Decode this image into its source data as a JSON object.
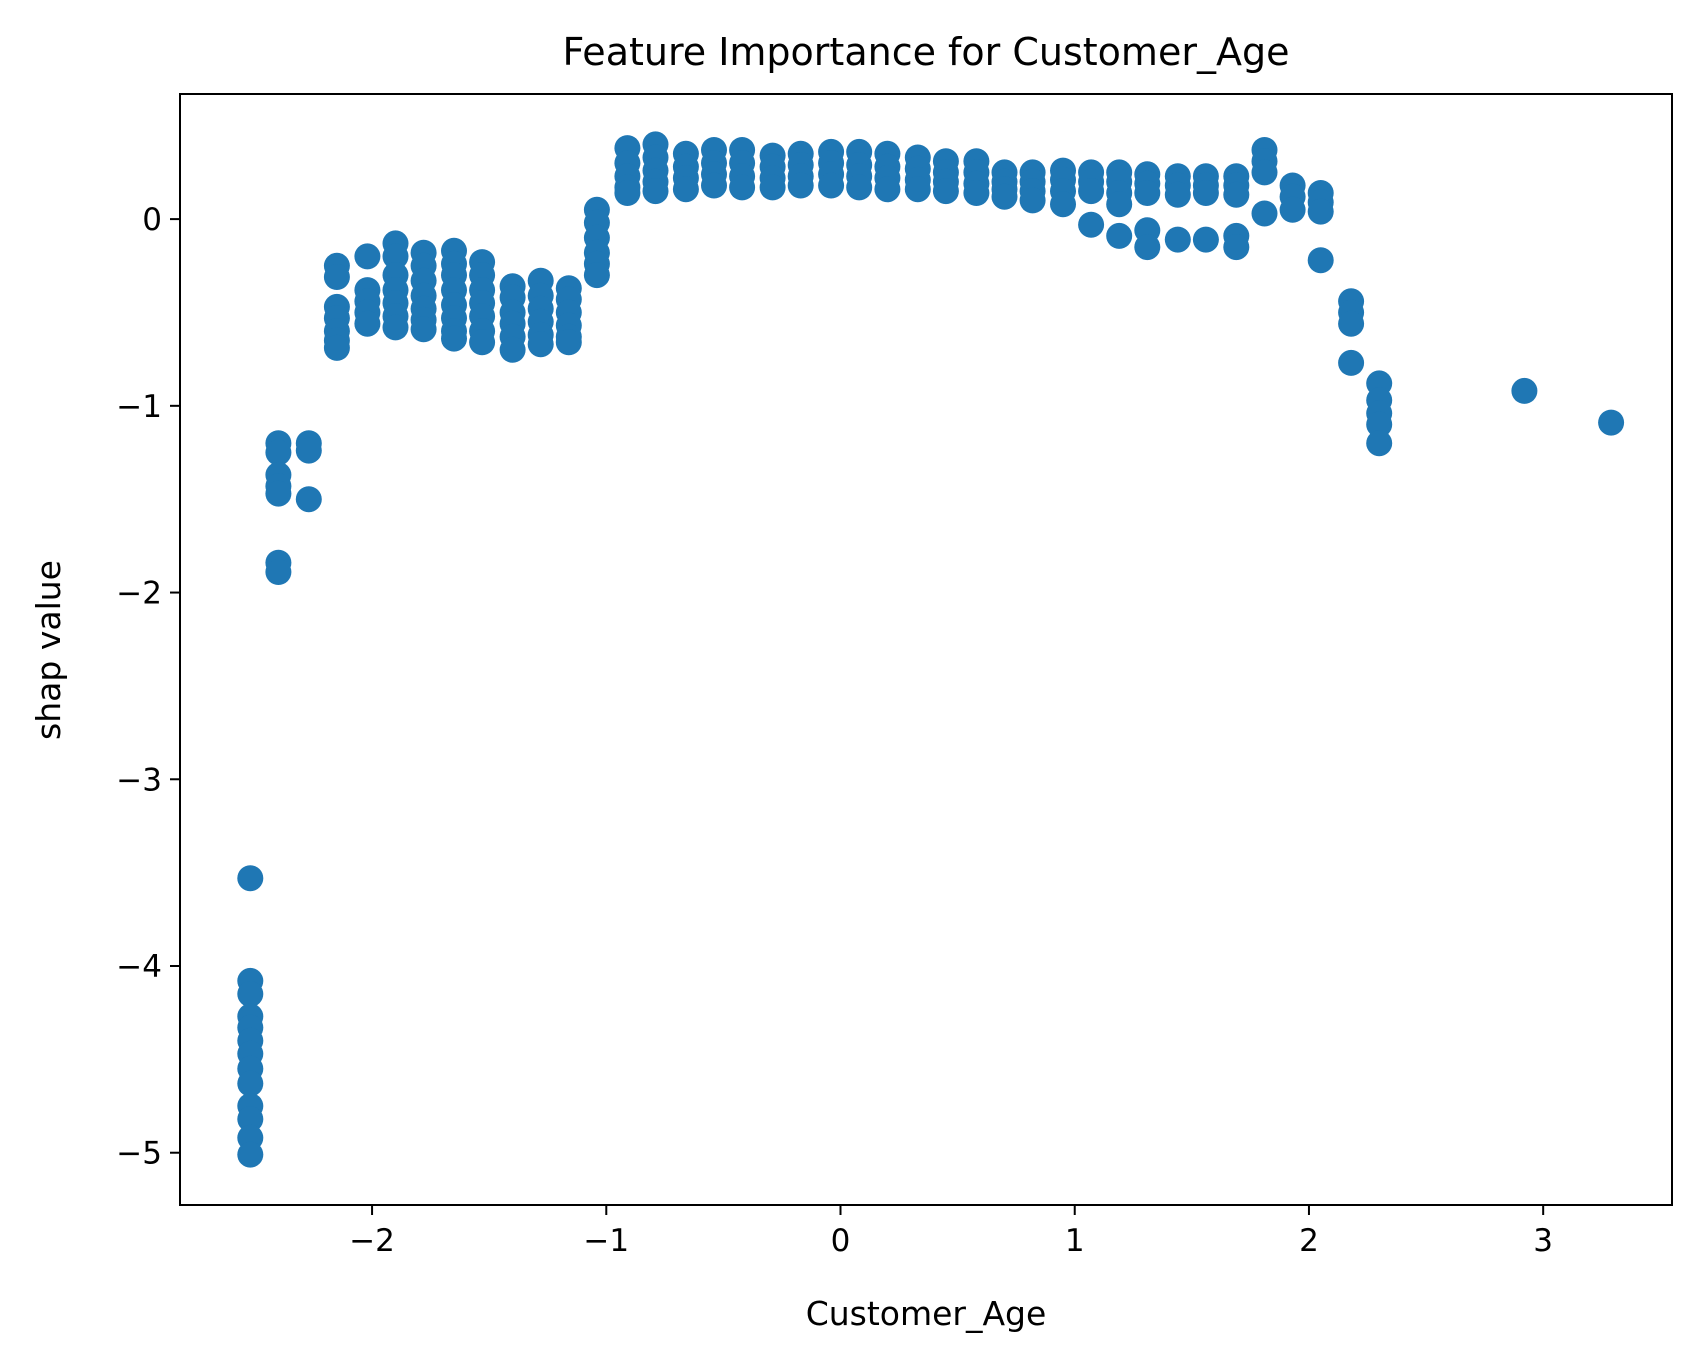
{
  "chart_data": {
    "type": "scatter",
    "title": "Feature Importance for Customer_Age",
    "xlabel": "Customer_Age",
    "ylabel": "shap value",
    "xlim": [
      -2.82,
      3.55
    ],
    "ylim": [
      -5.28,
      0.67
    ],
    "xticks": [
      -2,
      -1,
      0,
      1,
      2,
      3
    ],
    "yticks": [
      -5,
      -4,
      -3,
      -2,
      -1,
      0
    ],
    "xtick_labels": [
      "−2",
      "−1",
      "0",
      "1",
      "2",
      "3"
    ],
    "ytick_labels": [
      "−5",
      "−4",
      "−3",
      "−2",
      "−1",
      "0"
    ],
    "grid": false,
    "legend": false,
    "marker_color": "#1f77b4",
    "series": [
      {
        "points": [
          [
            -2.52,
            -3.53
          ],
          [
            -2.52,
            -4.08
          ],
          [
            -2.52,
            -4.15
          ],
          [
            -2.52,
            -4.27
          ],
          [
            -2.52,
            -4.33
          ],
          [
            -2.52,
            -4.4
          ],
          [
            -2.52,
            -4.47
          ],
          [
            -2.52,
            -4.55
          ],
          [
            -2.52,
            -4.63
          ],
          [
            -2.52,
            -4.75
          ],
          [
            -2.52,
            -4.82
          ],
          [
            -2.52,
            -4.92
          ],
          [
            -2.52,
            -5.01
          ],
          [
            -2.4,
            -1.2
          ],
          [
            -2.4,
            -1.25
          ],
          [
            -2.4,
            -1.37
          ],
          [
            -2.4,
            -1.43
          ],
          [
            -2.4,
            -1.47
          ],
          [
            -2.4,
            -1.84
          ],
          [
            -2.4,
            -1.89
          ],
          [
            -2.27,
            -1.2
          ],
          [
            -2.27,
            -1.24
          ],
          [
            -2.27,
            -1.5
          ],
          [
            -2.15,
            -0.25
          ],
          [
            -2.15,
            -0.31
          ],
          [
            -2.15,
            -0.47
          ],
          [
            -2.15,
            -0.53
          ],
          [
            -2.15,
            -0.6
          ],
          [
            -2.15,
            -0.65
          ],
          [
            -2.15,
            -0.69
          ],
          [
            -2.02,
            -0.2
          ],
          [
            -2.02,
            -0.38
          ],
          [
            -2.02,
            -0.44
          ],
          [
            -2.02,
            -0.5
          ],
          [
            -2.02,
            -0.56
          ],
          [
            -1.9,
            -0.13
          ],
          [
            -1.9,
            -0.2
          ],
          [
            -1.9,
            -0.3
          ],
          [
            -1.9,
            -0.38
          ],
          [
            -1.9,
            -0.45
          ],
          [
            -1.9,
            -0.52
          ],
          [
            -1.9,
            -0.58
          ],
          [
            -1.78,
            -0.18
          ],
          [
            -1.78,
            -0.25
          ],
          [
            -1.78,
            -0.33
          ],
          [
            -1.78,
            -0.41
          ],
          [
            -1.78,
            -0.48
          ],
          [
            -1.78,
            -0.54
          ],
          [
            -1.78,
            -0.59
          ],
          [
            -1.65,
            -0.17
          ],
          [
            -1.65,
            -0.24
          ],
          [
            -1.65,
            -0.3
          ],
          [
            -1.65,
            -0.38
          ],
          [
            -1.65,
            -0.46
          ],
          [
            -1.65,
            -0.53
          ],
          [
            -1.65,
            -0.6
          ],
          [
            -1.65,
            -0.64
          ],
          [
            -1.53,
            -0.23
          ],
          [
            -1.53,
            -0.3
          ],
          [
            -1.53,
            -0.38
          ],
          [
            -1.53,
            -0.45
          ],
          [
            -1.53,
            -0.52
          ],
          [
            -1.53,
            -0.6
          ],
          [
            -1.53,
            -0.66
          ],
          [
            -1.4,
            -0.36
          ],
          [
            -1.4,
            -0.42
          ],
          [
            -1.4,
            -0.5
          ],
          [
            -1.4,
            -0.56
          ],
          [
            -1.4,
            -0.63
          ],
          [
            -1.4,
            -0.7
          ],
          [
            -1.28,
            -0.33
          ],
          [
            -1.28,
            -0.41
          ],
          [
            -1.28,
            -0.48
          ],
          [
            -1.28,
            -0.55
          ],
          [
            -1.28,
            -0.62
          ],
          [
            -1.28,
            -0.67
          ],
          [
            -1.16,
            -0.37
          ],
          [
            -1.16,
            -0.43
          ],
          [
            -1.16,
            -0.5
          ],
          [
            -1.16,
            -0.57
          ],
          [
            -1.16,
            -0.63
          ],
          [
            -1.16,
            -0.66
          ],
          [
            -1.04,
            0.05
          ],
          [
            -1.04,
            -0.02
          ],
          [
            -1.04,
            -0.1
          ],
          [
            -1.04,
            -0.18
          ],
          [
            -1.04,
            -0.24
          ],
          [
            -1.04,
            -0.3
          ],
          [
            -0.91,
            0.38
          ],
          [
            -0.91,
            0.3
          ],
          [
            -0.91,
            0.23
          ],
          [
            -0.91,
            0.17
          ],
          [
            -0.91,
            0.14
          ],
          [
            -0.79,
            0.4
          ],
          [
            -0.79,
            0.33
          ],
          [
            -0.79,
            0.26
          ],
          [
            -0.79,
            0.2
          ],
          [
            -0.79,
            0.15
          ],
          [
            -0.66,
            0.35
          ],
          [
            -0.66,
            0.28
          ],
          [
            -0.66,
            0.22
          ],
          [
            -0.66,
            0.16
          ],
          [
            -0.54,
            0.37
          ],
          [
            -0.54,
            0.3
          ],
          [
            -0.54,
            0.24
          ],
          [
            -0.54,
            0.18
          ],
          [
            -0.42,
            0.37
          ],
          [
            -0.42,
            0.3
          ],
          [
            -0.42,
            0.23
          ],
          [
            -0.42,
            0.17
          ],
          [
            -0.29,
            0.34
          ],
          [
            -0.29,
            0.28
          ],
          [
            -0.29,
            0.22
          ],
          [
            -0.29,
            0.17
          ],
          [
            -0.17,
            0.35
          ],
          [
            -0.17,
            0.29
          ],
          [
            -0.17,
            0.23
          ],
          [
            -0.17,
            0.18
          ],
          [
            -0.04,
            0.36
          ],
          [
            -0.04,
            0.3
          ],
          [
            -0.04,
            0.24
          ],
          [
            -0.04,
            0.18
          ],
          [
            0.08,
            0.36
          ],
          [
            0.08,
            0.29
          ],
          [
            0.08,
            0.23
          ],
          [
            0.08,
            0.17
          ],
          [
            0.2,
            0.35
          ],
          [
            0.2,
            0.28
          ],
          [
            0.2,
            0.22
          ],
          [
            0.2,
            0.16
          ],
          [
            0.33,
            0.33
          ],
          [
            0.33,
            0.27
          ],
          [
            0.33,
            0.21
          ],
          [
            0.33,
            0.16
          ],
          [
            0.45,
            0.31
          ],
          [
            0.45,
            0.25
          ],
          [
            0.45,
            0.2
          ],
          [
            0.45,
            0.15
          ],
          [
            0.58,
            0.31
          ],
          [
            0.58,
            0.25
          ],
          [
            0.58,
            0.19
          ],
          [
            0.58,
            0.14
          ],
          [
            0.7,
            0.25
          ],
          [
            0.7,
            0.2
          ],
          [
            0.7,
            0.16
          ],
          [
            0.7,
            0.12
          ],
          [
            0.82,
            0.25
          ],
          [
            0.82,
            0.2
          ],
          [
            0.82,
            0.15
          ],
          [
            0.82,
            0.1
          ],
          [
            0.95,
            0.26
          ],
          [
            0.95,
            0.21
          ],
          [
            0.95,
            0.15
          ],
          [
            0.95,
            0.08
          ],
          [
            1.07,
            0.25
          ],
          [
            1.07,
            0.2
          ],
          [
            1.07,
            0.15
          ],
          [
            1.07,
            -0.03
          ],
          [
            1.19,
            0.25
          ],
          [
            1.19,
            0.2
          ],
          [
            1.19,
            0.14
          ],
          [
            1.19,
            0.08
          ],
          [
            1.19,
            -0.09
          ],
          [
            1.31,
            0.24
          ],
          [
            1.31,
            0.19
          ],
          [
            1.31,
            0.14
          ],
          [
            1.31,
            -0.06
          ],
          [
            1.31,
            -0.15
          ],
          [
            1.44,
            0.23
          ],
          [
            1.44,
            0.18
          ],
          [
            1.44,
            0.13
          ],
          [
            1.44,
            -0.11
          ],
          [
            1.56,
            0.23
          ],
          [
            1.56,
            0.18
          ],
          [
            1.56,
            0.14
          ],
          [
            1.56,
            -0.11
          ],
          [
            1.69,
            0.23
          ],
          [
            1.69,
            0.18
          ],
          [
            1.69,
            0.13
          ],
          [
            1.69,
            -0.09
          ],
          [
            1.69,
            -0.15
          ],
          [
            1.81,
            0.37
          ],
          [
            1.81,
            0.31
          ],
          [
            1.81,
            0.25
          ],
          [
            1.81,
            0.03
          ],
          [
            1.93,
            0.18
          ],
          [
            1.93,
            0.12
          ],
          [
            1.93,
            0.05
          ],
          [
            2.05,
            0.14
          ],
          [
            2.05,
            0.09
          ],
          [
            2.05,
            0.04
          ],
          [
            2.05,
            -0.22
          ],
          [
            2.18,
            -0.44
          ],
          [
            2.18,
            -0.5
          ],
          [
            2.18,
            -0.56
          ],
          [
            2.18,
            -0.77
          ],
          [
            2.3,
            -0.88
          ],
          [
            2.3,
            -0.97
          ],
          [
            2.3,
            -1.04
          ],
          [
            2.3,
            -1.1
          ],
          [
            2.3,
            -1.2
          ],
          [
            2.92,
            -0.92
          ],
          [
            3.29,
            -1.09
          ]
        ]
      }
    ]
  }
}
